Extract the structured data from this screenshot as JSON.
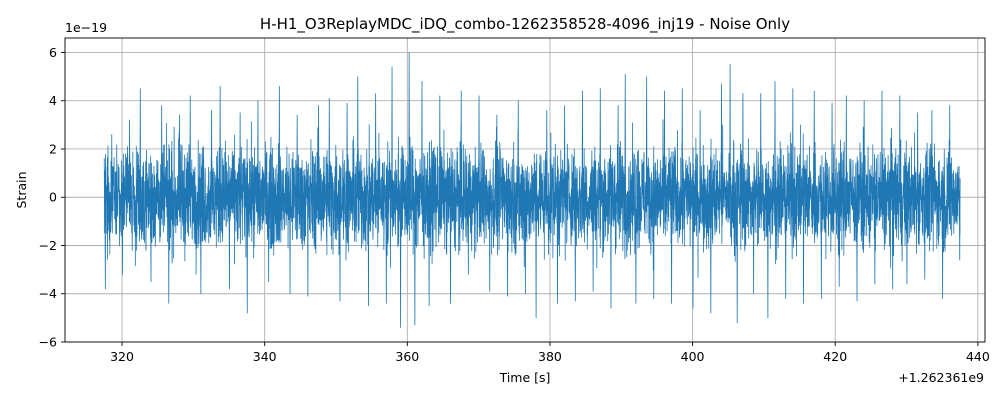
{
  "chart_data": {
    "type": "line",
    "title": "H-H1_O3ReplayMDC_iDQ_combo-1262358528-4096_inj19 - Noise Only",
    "xlabel": "Time [s]",
    "ylabel": "Strain",
    "x_offset_label": "+1.262361e9",
    "y_scale_label": "1e−19",
    "xlim": [
      312,
      441
    ],
    "ylim": [
      -6,
      6.6
    ],
    "xticks": [
      320,
      340,
      360,
      380,
      400,
      420,
      440
    ],
    "yticks": [
      -6,
      -4,
      -2,
      0,
      2,
      4,
      6
    ],
    "grid": true,
    "color": "#1f77b4",
    "series": [
      {
        "x_range": [
          317.5,
          437.5
        ],
        "peaks": [
          [
            317.6,
            -3.8
          ],
          [
            318.5,
            2.6
          ],
          [
            320.0,
            -3.2
          ],
          [
            321.0,
            3.2
          ],
          [
            322.5,
            4.5
          ],
          [
            324.0,
            -3.5
          ],
          [
            325.5,
            3.8
          ],
          [
            326.5,
            -4.4
          ],
          [
            328.0,
            3.4
          ],
          [
            329.5,
            4.2
          ],
          [
            331.0,
            -4.0
          ],
          [
            332.5,
            3.6
          ],
          [
            333.7,
            4.6
          ],
          [
            335.0,
            -3.8
          ],
          [
            336.5,
            3.5
          ],
          [
            337.5,
            -4.8
          ],
          [
            339.0,
            4.0
          ],
          [
            340.5,
            -3.5
          ],
          [
            342.0,
            4.6
          ],
          [
            343.5,
            -4.0
          ],
          [
            344.5,
            3.4
          ],
          [
            346.0,
            -4.1
          ],
          [
            347.5,
            3.8
          ],
          [
            349.0,
            4.1
          ],
          [
            350.5,
            -4.3
          ],
          [
            351.5,
            3.9
          ],
          [
            353.0,
            5.0
          ],
          [
            354.5,
            -4.5
          ],
          [
            355.5,
            4.3
          ],
          [
            357.0,
            -4.4
          ],
          [
            357.8,
            5.4
          ],
          [
            359.0,
            -5.4
          ],
          [
            360.2,
            6.0
          ],
          [
            361.0,
            -5.3
          ],
          [
            362.0,
            4.8
          ],
          [
            363.0,
            -4.5
          ],
          [
            364.5,
            4.2
          ],
          [
            366.0,
            -4.4
          ],
          [
            367.5,
            4.4
          ],
          [
            368.5,
            -3.2
          ],
          [
            370.0,
            4.2
          ],
          [
            371.5,
            -3.9
          ],
          [
            372.5,
            3.4
          ],
          [
            374.0,
            -4.1
          ],
          [
            375.5,
            4.0
          ],
          [
            376.5,
            -4.0
          ],
          [
            378.0,
            -5.0
          ],
          [
            379.5,
            3.6
          ],
          [
            381.0,
            -4.4
          ],
          [
            382.0,
            3.8
          ],
          [
            383.5,
            -4.3
          ],
          [
            384.5,
            4.4
          ],
          [
            386.0,
            -3.9
          ],
          [
            387.0,
            4.5
          ],
          [
            388.5,
            -4.6
          ],
          [
            389.5,
            3.8
          ],
          [
            390.5,
            5.1
          ],
          [
            392.0,
            -4.4
          ],
          [
            393.5,
            5.0
          ],
          [
            394.5,
            -4.2
          ],
          [
            396.0,
            4.4
          ],
          [
            397.0,
            -4.4
          ],
          [
            398.5,
            4.5
          ],
          [
            400.0,
            -4.6
          ],
          [
            401.0,
            3.6
          ],
          [
            402.5,
            -4.8
          ],
          [
            404.0,
            4.7
          ],
          [
            405.2,
            5.5
          ],
          [
            406.2,
            -5.2
          ],
          [
            407.0,
            4.3
          ],
          [
            408.5,
            -4.0
          ],
          [
            409.5,
            4.3
          ],
          [
            410.5,
            -5.0
          ],
          [
            411.5,
            4.8
          ],
          [
            413.0,
            -4.2
          ],
          [
            414.0,
            4.5
          ],
          [
            415.5,
            -4.4
          ],
          [
            417.0,
            4.4
          ],
          [
            418.0,
            -4.2
          ],
          [
            419.5,
            3.9
          ],
          [
            420.5,
            -3.7
          ],
          [
            421.5,
            4.2
          ],
          [
            423.0,
            -4.3
          ],
          [
            424.0,
            4.0
          ],
          [
            425.5,
            -3.6
          ],
          [
            426.5,
            4.4
          ],
          [
            428.0,
            -3.8
          ],
          [
            429.0,
            4.2
          ],
          [
            430.0,
            -3.6
          ],
          [
            431.5,
            3.5
          ],
          [
            432.5,
            -3.4
          ],
          [
            433.5,
            3.6
          ],
          [
            435.0,
            -4.2
          ],
          [
            436.0,
            3.8
          ],
          [
            437.4,
            -2.6
          ]
        ]
      }
    ]
  }
}
